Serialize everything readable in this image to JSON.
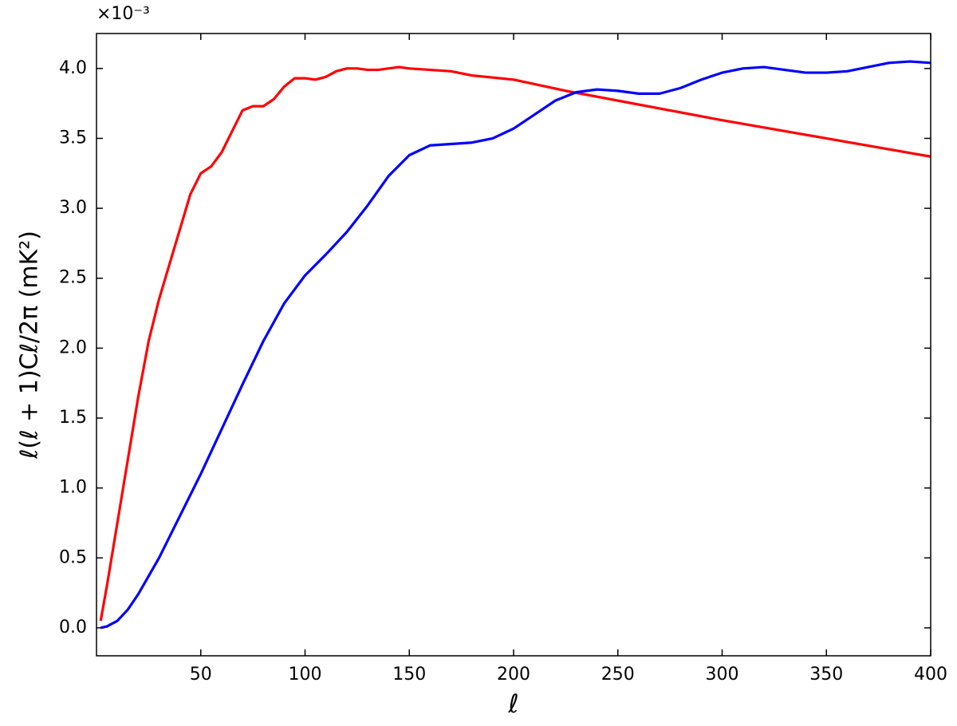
{
  "chart_data": {
    "type": "line",
    "x_label": "ℓ",
    "y_label": "ℓ(ℓ + 1)Cℓ/2π   (mK²)",
    "y_offset_text": "×10⁻³",
    "xlim": [
      0,
      400
    ],
    "ylim": [
      -0.2,
      4.25
    ],
    "xticks": [
      50,
      100,
      150,
      200,
      250,
      300,
      350,
      400
    ],
    "yticks": [
      {
        "value": 0,
        "label": "0.0"
      },
      0.5,
      {
        "value": 1,
        "label": "1.0"
      },
      1.5,
      {
        "value": 2,
        "label": "2.0"
      },
      2.5,
      {
        "value": 3,
        "label": "3.0"
      },
      3.5,
      {
        "value": 4,
        "label": "4.0"
      }
    ],
    "series": [
      {
        "color": "#ff0000",
        "x": [
          2,
          5,
          10,
          15,
          20,
          25,
          30,
          35,
          40,
          45,
          50,
          55,
          60,
          65,
          70,
          75,
          80,
          85,
          90,
          95,
          100,
          105,
          110,
          115,
          120,
          125,
          130,
          135,
          140,
          145,
          150,
          160,
          170,
          180,
          200,
          225,
          250,
          300,
          350,
          400
        ],
        "values": [
          0.05,
          0.3,
          0.75,
          1.2,
          1.65,
          2.05,
          2.35,
          2.6,
          2.85,
          3.1,
          3.25,
          3.3,
          3.4,
          3.55,
          3.7,
          3.73,
          3.73,
          3.78,
          3.87,
          3.93,
          3.93,
          3.92,
          3.94,
          3.98,
          4.0,
          4.0,
          3.99,
          3.99,
          4.0,
          4.01,
          4.0,
          3.99,
          3.98,
          3.95,
          3.92,
          3.84,
          3.77,
          3.63,
          3.5,
          3.37
        ]
      },
      {
        "color": "#0000ff",
        "x": [
          2,
          5,
          10,
          15,
          20,
          25,
          30,
          40,
          50,
          60,
          70,
          80,
          90,
          100,
          110,
          120,
          130,
          140,
          150,
          160,
          170,
          180,
          190,
          200,
          210,
          220,
          230,
          240,
          250,
          260,
          270,
          280,
          290,
          300,
          310,
          320,
          330,
          340,
          350,
          360,
          370,
          380,
          390,
          400
        ],
        "values": [
          0.0,
          0.01,
          0.05,
          0.13,
          0.24,
          0.37,
          0.5,
          0.8,
          1.1,
          1.42,
          1.74,
          2.05,
          2.32,
          2.52,
          2.67,
          2.83,
          3.02,
          3.23,
          3.38,
          3.45,
          3.46,
          3.47,
          3.5,
          3.57,
          3.67,
          3.77,
          3.83,
          3.85,
          3.84,
          3.82,
          3.82,
          3.86,
          3.92,
          3.97,
          4.0,
          4.01,
          3.99,
          3.97,
          3.97,
          3.98,
          4.01,
          4.04,
          4.05,
          4.04
        ]
      }
    ]
  }
}
